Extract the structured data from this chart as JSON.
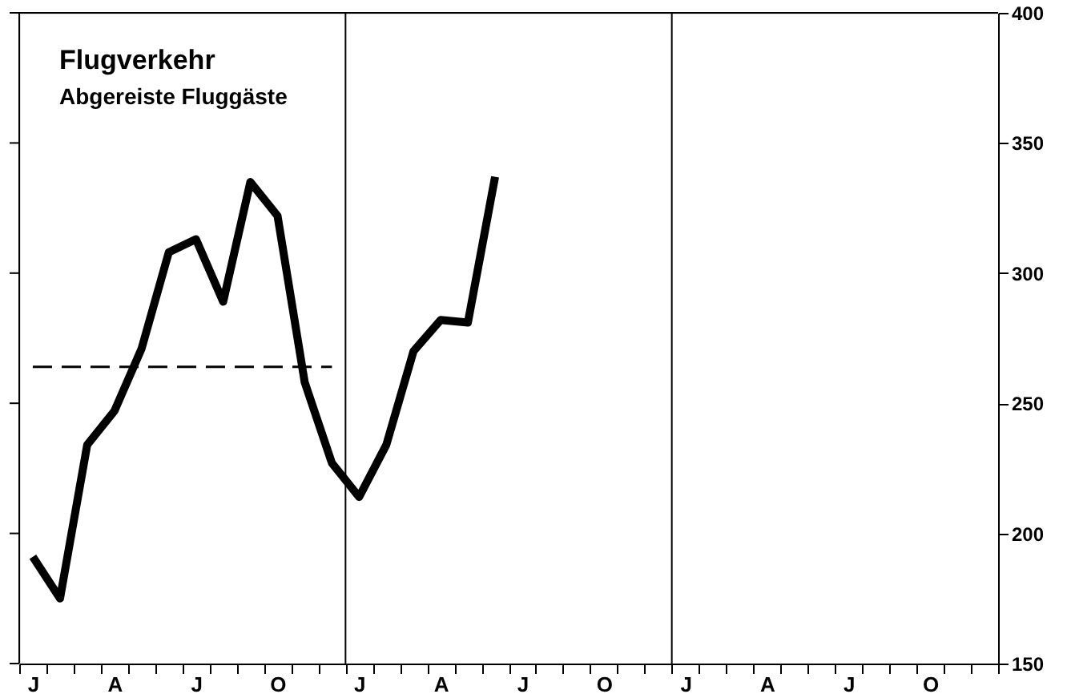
{
  "chart_data": {
    "type": "line",
    "title": "Flugverkehr",
    "subtitle": "Abgereiste Fluggäste",
    "categories": [
      "J",
      null,
      null,
      "A",
      null,
      null,
      "J",
      null,
      null,
      "O",
      null,
      null,
      "J",
      null,
      null,
      "A",
      null,
      null,
      "J",
      null,
      null,
      "O",
      null,
      null,
      "J",
      null,
      null,
      "A",
      null,
      null,
      "J",
      null,
      null,
      "O",
      null,
      null
    ],
    "series": [
      {
        "color": "#000000",
        "values": [
          191,
          175,
          234,
          247,
          271,
          308,
          313,
          289,
          335,
          322,
          258,
          227,
          214,
          234,
          270,
          282,
          281,
          337,
          null,
          null,
          null,
          null,
          null,
          null,
          null,
          null,
          null,
          null,
          null,
          null,
          null,
          null,
          null,
          null,
          null,
          null
        ]
      }
    ],
    "ylim": [
      150,
      400
    ],
    "yticks": [
      150,
      200,
      250,
      300,
      350,
      400
    ],
    "ref_lines": [
      {
        "axis": "y",
        "value": 264,
        "color": "#000000",
        "line_style": "dashed"
      }
    ],
    "grid": false,
    "marker": "none",
    "line_style": "solid"
  }
}
